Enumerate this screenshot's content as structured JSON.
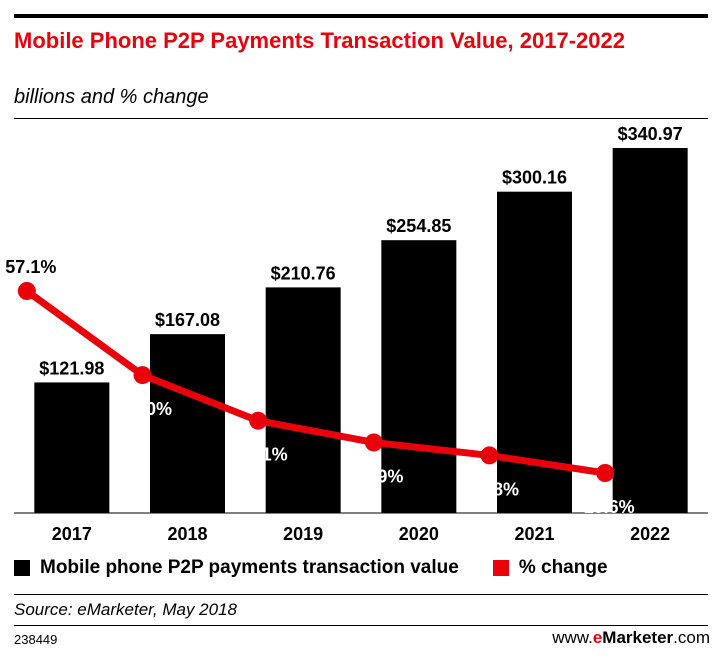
{
  "chart_data": {
    "type": "bar",
    "title": "Mobile Phone P2P Payments Transaction Value, 2017-2022",
    "subtitle": "billions and % change",
    "categories": [
      "2017",
      "2018",
      "2019",
      "2020",
      "2021",
      "2022"
    ],
    "series": [
      {
        "name": "Mobile phone P2P payments transaction value",
        "type": "bar",
        "values": [
          121.98,
          167.08,
          210.76,
          254.85,
          300.16,
          340.97
        ],
        "labels": [
          "$121.98",
          "$167.08",
          "$210.76",
          "$254.85",
          "$300.16",
          "$340.97"
        ],
        "color": "#000000"
      },
      {
        "name": "% change",
        "type": "line",
        "values": [
          57.1,
          37.0,
          26.1,
          20.9,
          17.8,
          13.6
        ],
        "labels": [
          "57.1%",
          "37.0%",
          "26.1%",
          "20.9%",
          "17.8%",
          "13.6%"
        ],
        "color": "#e8000b"
      }
    ],
    "legend": "bottom",
    "grid": false
  },
  "source": "Source: eMarketer, May 2018",
  "footer": {
    "chart_id": "238449",
    "brand_prefix": "www.",
    "brand_e": "e",
    "brand_marketer": "Marketer",
    "brand_suffix": ".com"
  }
}
